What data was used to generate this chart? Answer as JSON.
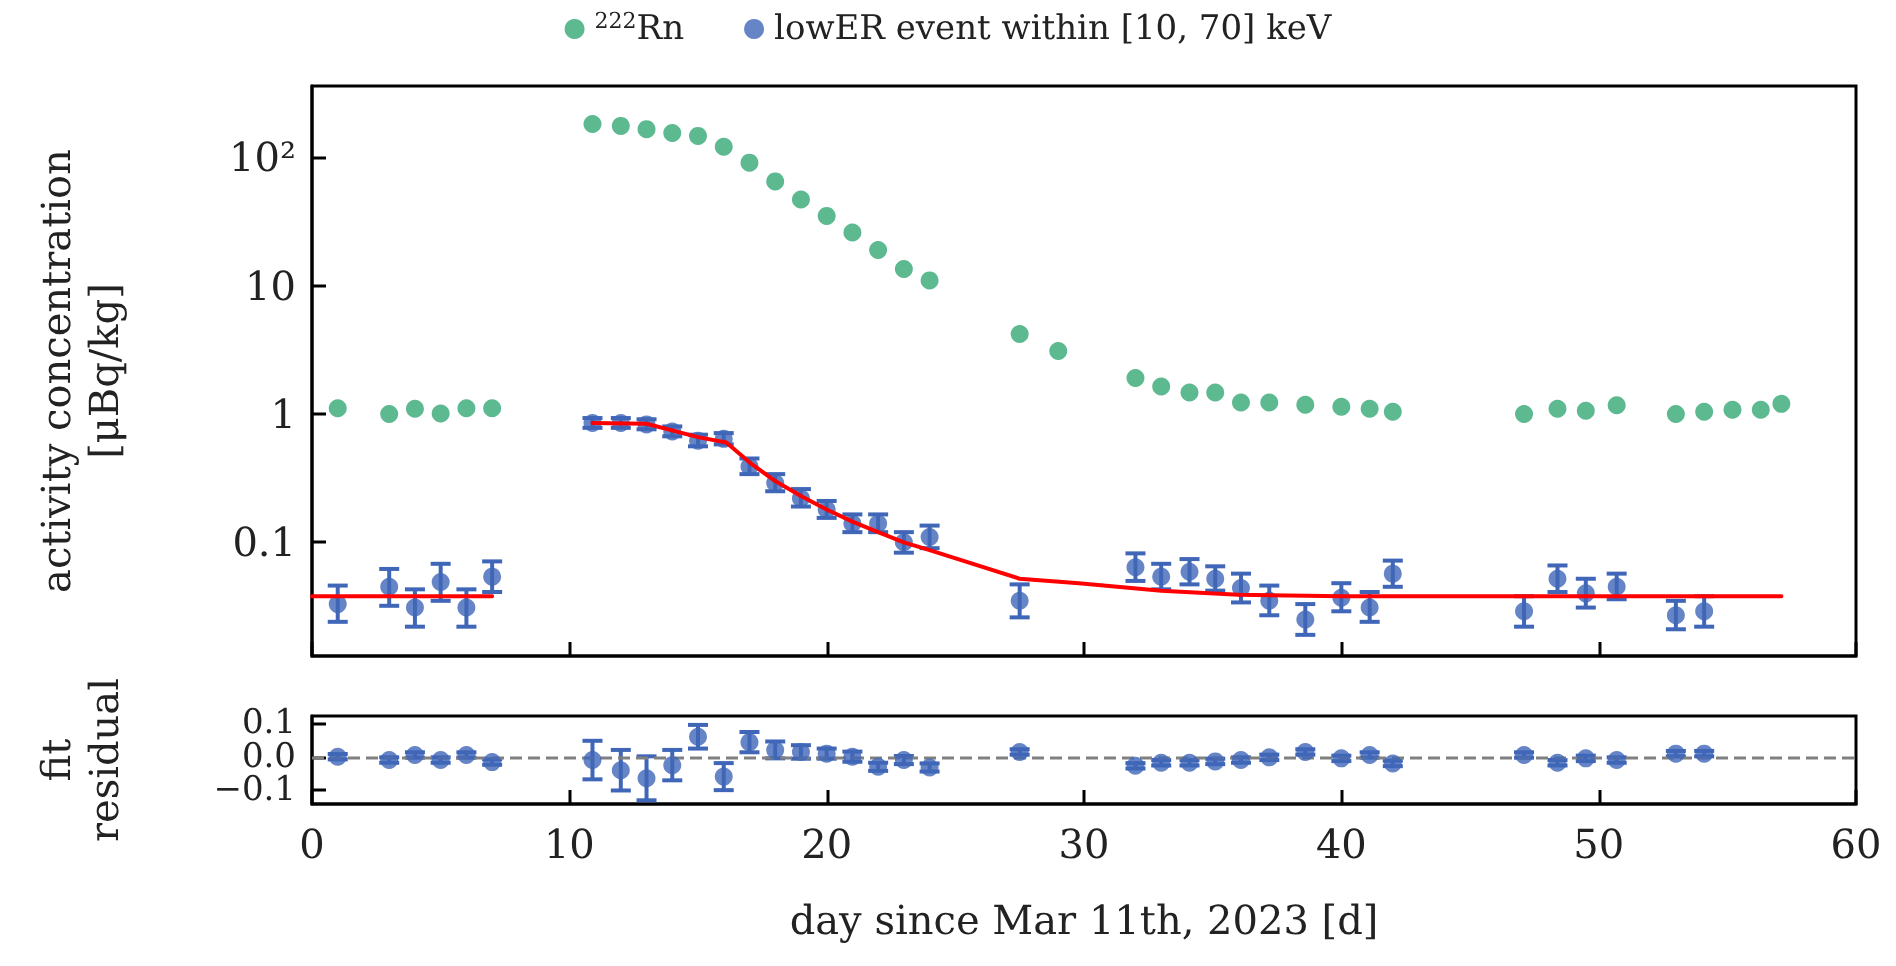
{
  "chart_data": [
    {
      "type": "scatter",
      "ylabel": "activity concentration\n[μBq/kg]",
      "xlim": [
        0,
        60
      ],
      "xticks": [
        0,
        10,
        20,
        30,
        40,
        50,
        60
      ],
      "ylim": [
        0.013,
        360
      ],
      "yticks": [
        {
          "value": 100,
          "label": "10²"
        },
        10,
        1,
        0.1
      ],
      "log": "y",
      "legend": "top",
      "tick_labels": "y",
      "marker": "circle",
      "series": [
        {
          "name": "$^{222}$Rn",
          "color": "#35a874",
          "x": [
            1,
            3,
            4,
            5,
            6,
            7,
            10.9,
            12,
            13,
            14,
            15,
            16,
            17,
            18,
            19,
            20,
            21,
            22,
            23,
            24,
            27.5,
            29,
            32,
            33,
            34.1,
            35.1,
            36.1,
            37.2,
            38.6,
            40,
            41.1,
            42,
            47.1,
            48.4,
            49.5,
            50.7,
            53,
            54.1,
            55.2,
            56.3,
            57.1
          ],
          "values": [
            1.11,
            1.0,
            1.1,
            1.01,
            1.11,
            1.11,
            182,
            176,
            166,
            155,
            147,
            121,
            91,
            65,
            47,
            35,
            26,
            19,
            13.5,
            11,
            4.2,
            3.1,
            1.91,
            1.64,
            1.47,
            1.47,
            1.23,
            1.23,
            1.18,
            1.14,
            1.1,
            1.04,
            1.0,
            1.1,
            1.06,
            1.17,
            1.0,
            1.04,
            1.08,
            1.08,
            1.2
          ]
        },
        {
          "name": "lowER event within [10, 70] keV",
          "color": "#4066b8",
          "x": [
            1,
            3,
            4,
            5,
            6,
            7,
            10.9,
            12,
            13,
            14,
            15,
            16,
            17,
            18,
            19,
            20,
            21,
            22,
            23,
            24,
            27.5,
            32,
            33,
            34.1,
            35.1,
            36.1,
            37.2,
            38.6,
            40,
            41.1,
            42,
            47.1,
            48.4,
            49.5,
            50.7,
            53,
            54.1
          ],
          "values": [
            0.033,
            0.045,
            0.031,
            0.049,
            0.031,
            0.054,
            0.85,
            0.85,
            0.83,
            0.73,
            0.62,
            0.64,
            0.39,
            0.29,
            0.22,
            0.18,
            0.14,
            0.14,
            0.1,
            0.11,
            0.035,
            0.064,
            0.054,
            0.059,
            0.052,
            0.044,
            0.035,
            0.025,
            0.037,
            0.031,
            0.057,
            0.029,
            0.052,
            0.04,
            0.045,
            0.027,
            0.029
          ],
          "errors": [
            [
              0.024,
              0.046
            ],
            [
              0.032,
              0.062
            ],
            [
              0.022,
              0.043
            ],
            [
              0.035,
              0.068
            ],
            [
              0.022,
              0.043
            ],
            [
              0.041,
              0.071
            ],
            [
              0.78,
              0.93
            ],
            [
              0.78,
              0.93
            ],
            [
              0.76,
              0.91
            ],
            [
              0.67,
              0.8
            ],
            [
              0.56,
              0.69
            ],
            [
              0.58,
              0.71
            ],
            [
              0.34,
              0.45
            ],
            [
              0.25,
              0.34
            ],
            [
              0.19,
              0.26
            ],
            [
              0.155,
              0.21
            ],
            [
              0.12,
              0.165
            ],
            [
              0.12,
              0.165
            ],
            [
              0.083,
              0.12
            ],
            [
              0.09,
              0.135
            ],
            [
              0.026,
              0.047
            ],
            [
              0.05,
              0.082
            ],
            [
              0.043,
              0.068
            ],
            [
              0.047,
              0.074
            ],
            [
              0.042,
              0.065
            ],
            [
              0.034,
              0.057
            ],
            [
              0.027,
              0.046
            ],
            [
              0.019,
              0.033
            ],
            [
              0.029,
              0.048
            ],
            [
              0.024,
              0.041
            ],
            [
              0.045,
              0.072
            ],
            [
              0.022,
              0.038
            ],
            [
              0.041,
              0.066
            ],
            [
              0.031,
              0.052
            ],
            [
              0.036,
              0.057
            ],
            [
              0.021,
              0.035
            ],
            [
              0.022,
              0.038
            ]
          ]
        },
        {
          "type": "line",
          "color": "#ff0000",
          "line_style": "solid",
          "marker": "none",
          "x": [
            0,
            7,
            9,
            10.9,
            13,
            15,
            16.1,
            17,
            18,
            19,
            20,
            21,
            22,
            23,
            24,
            27.5,
            29.8,
            33,
            36,
            40,
            45,
            50,
            57.1
          ],
          "values": [
            0.038,
            0.038,
            null,
            0.85,
            0.84,
            0.66,
            0.6,
            0.42,
            0.3,
            0.23,
            0.18,
            0.145,
            0.12,
            0.1,
            0.087,
            0.052,
            0.048,
            0.042,
            0.039,
            0.038,
            0.038,
            0.038,
            0.038
          ]
        }
      ]
    },
    {
      "type": "scatter",
      "xlabel": "day since Mar 11th, 2023 [d]",
      "ylabel": "fit\nresidual",
      "xlim": [
        0,
        60
      ],
      "xticks": [
        0,
        10,
        20,
        30,
        40,
        50,
        60
      ],
      "ylim": [
        -0.14,
        0.12
      ],
      "yticks": [
        0.1,
        {
          "value": 0,
          "label": "0.0"
        },
        {
          "value": -0.1,
          "label": "−0.1"
        }
      ],
      "marker": "circle",
      "ref_lines": [
        {
          "axis": "y",
          "value": 0,
          "color": "#808080",
          "line_style": "dashed"
        }
      ],
      "series": [
        {
          "color": "#4066b8",
          "x": [
            1,
            3,
            4,
            5,
            6,
            7,
            10.9,
            12,
            13,
            14,
            15,
            16,
            17,
            18,
            19,
            20,
            21,
            22,
            23,
            24,
            27.5,
            32,
            33,
            34.1,
            35.1,
            36.1,
            37.2,
            38.6,
            40,
            41.1,
            42,
            47.1,
            48.4,
            49.5,
            50.7,
            53,
            54.1
          ],
          "values": [
            0,
            -0.01,
            0.005,
            -0.01,
            0.005,
            -0.016,
            -0.01,
            -0.04,
            -0.064,
            -0.025,
            0.059,
            -0.059,
            0.043,
            0.02,
            0.014,
            0.009,
            0,
            -0.03,
            -0.01,
            -0.032,
            0.014,
            -0.027,
            -0.018,
            -0.018,
            -0.014,
            -0.01,
            -0.002,
            0.014,
            -0.005,
            0.005,
            -0.02,
            0.005,
            -0.018,
            -0.005,
            -0.01,
            0.009,
            0.009
          ],
          "errors": [
            0.008,
            0.008,
            0.008,
            0.008,
            0.008,
            0.008,
            0.057,
            0.06,
            0.065,
            0.045,
            0.035,
            0.04,
            0.03,
            0.025,
            0.02,
            0.015,
            0.015,
            0.012,
            0.012,
            0.012,
            0.008,
            0.008,
            0.008,
            0.008,
            0.008,
            0.008,
            0.008,
            0.008,
            0.008,
            0.008,
            0.008,
            0.008,
            0.008,
            0.008,
            0.008,
            0.008,
            0.008
          ]
        }
      ]
    }
  ]
}
